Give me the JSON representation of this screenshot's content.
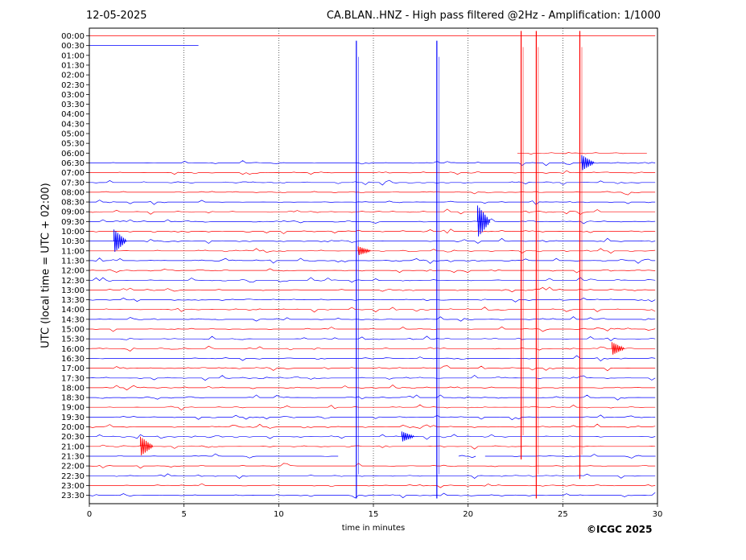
{
  "header": {
    "date": "12-05-2025",
    "title": "CA.BLAN..HNZ - High pass filtered @2Hz - Amplification: 1/1000"
  },
  "footer": {
    "copyright": "©ICGC 2025"
  },
  "colors": {
    "trace_red": "#ff0000",
    "trace_blue": "#0000ff",
    "grid": "#000000",
    "background": "#ffffff"
  },
  "chart_data": {
    "type": "line",
    "title": "CA.BLAN..HNZ - High pass filtered @2Hz - Amplification: 1/1000",
    "xlabel": "time in minutes",
    "ylabel": "UTC (local time = UTC + 02:00)",
    "xlim": [
      0,
      30
    ],
    "x_ticks": [
      0,
      5,
      10,
      15,
      20,
      25,
      30
    ],
    "x_tick_labels": [
      "0",
      "5",
      "10",
      "15",
      "20",
      "25",
      "30"
    ],
    "vertical_gridlines_minutes": [
      5,
      10,
      15,
      20,
      25
    ],
    "grid": "vertical dotted",
    "row_labels": [
      "00:00",
      "00:30",
      "01:00",
      "01:30",
      "02:00",
      "02:30",
      "03:00",
      "03:30",
      "04:00",
      "04:30",
      "05:00",
      "05:30",
      "06:00",
      "06:30",
      "07:00",
      "07:30",
      "08:00",
      "08:30",
      "09:00",
      "09:30",
      "10:00",
      "10:30",
      "11:00",
      "11:30",
      "12:00",
      "12:30",
      "13:00",
      "13:30",
      "14:00",
      "14:30",
      "15:00",
      "15:30",
      "16:00",
      "16:30",
      "17:00",
      "17:30",
      "18:00",
      "18:30",
      "19:00",
      "19:30",
      "20:00",
      "20:30",
      "21:00",
      "21:30",
      "22:00",
      "22:30",
      "23:00",
      "23:30"
    ],
    "row_colors_alternate": [
      "red",
      "blue"
    ],
    "data_gap": {
      "from_row": "01:00",
      "to_row": "05:30",
      "note_visible": ""
    },
    "partial_rows": [
      {
        "row": "00:30",
        "x_end": 5.8
      },
      {
        "row": "06:00",
        "x_start": 22.6,
        "x_end": 29.5
      },
      {
        "row": "21:30",
        "segments": [
          [
            0,
            13.2
          ],
          [
            19.5,
            20.5
          ],
          [
            20.9,
            30
          ]
        ]
      }
    ],
    "spikes": [
      {
        "x": 14.1,
        "from_row": "00:30",
        "to_row": "23:30",
        "color": "blue"
      },
      {
        "x": 18.35,
        "from_row": "00:30",
        "to_row": "23:30",
        "color": "blue"
      },
      {
        "x": 22.8,
        "from_row": "00:00",
        "to_row": "21:30",
        "color": "red"
      },
      {
        "x": 23.6,
        "from_row": "00:00",
        "to_row": "23:30",
        "color": "red"
      },
      {
        "x": 25.9,
        "from_row": "00:00",
        "to_row": "22:30",
        "color": "red"
      }
    ],
    "events": [
      {
        "row": "10:30",
        "x": 1.6,
        "amplitude": 1.8
      },
      {
        "row": "09:30",
        "x": 20.8,
        "amplitude": 2.5
      },
      {
        "row": "06:30",
        "x": 26.3,
        "amplitude": 1.2
      },
      {
        "row": "21:00",
        "x": 3.0,
        "amplitude": 1.5
      },
      {
        "row": "16:00",
        "x": 27.9,
        "amplitude": 1.0
      },
      {
        "row": "20:30",
        "x": 16.8,
        "amplitude": 0.8
      },
      {
        "row": "11:00",
        "x": 14.5,
        "amplitude": 0.7
      }
    ]
  }
}
